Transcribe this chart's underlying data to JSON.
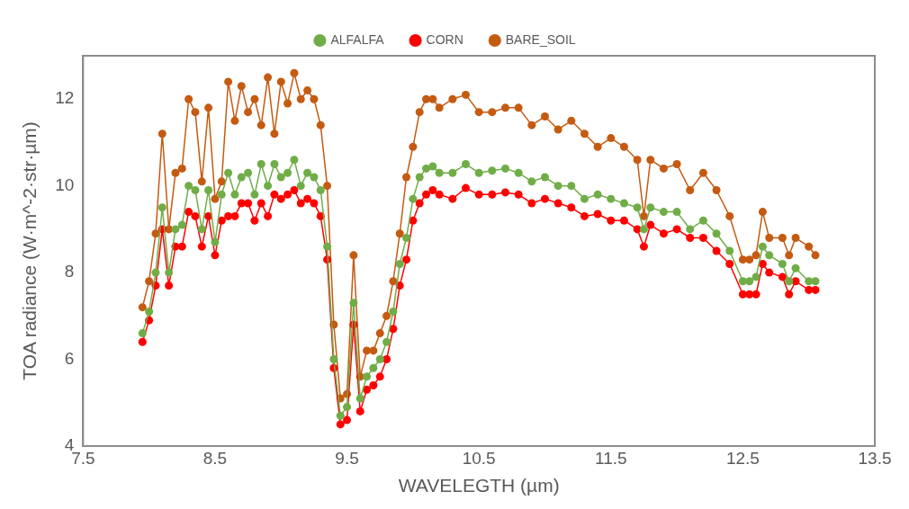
{
  "chart_data": {
    "type": "line",
    "xlabel": "WAVELEGTH (µm)",
    "ylabel": "TOA radiance (W·m^-2·str·µm)",
    "x": [
      7.95,
      8.0,
      8.05,
      8.1,
      8.15,
      8.2,
      8.25,
      8.3,
      8.35,
      8.4,
      8.45,
      8.5,
      8.55,
      8.6,
      8.65,
      8.7,
      8.75,
      8.8,
      8.85,
      8.9,
      8.95,
      9.0,
      9.05,
      9.1,
      9.15,
      9.2,
      9.25,
      9.3,
      9.35,
      9.4,
      9.45,
      9.5,
      9.55,
      9.6,
      9.65,
      9.7,
      9.75,
      9.8,
      9.85,
      9.9,
      9.95,
      10.0,
      10.05,
      10.1,
      10.15,
      10.2,
      10.3,
      10.4,
      10.5,
      10.6,
      10.7,
      10.8,
      10.9,
      11.0,
      11.1,
      11.2,
      11.3,
      11.4,
      11.5,
      11.6,
      11.7,
      11.75,
      11.8,
      11.9,
      12.0,
      12.1,
      12.2,
      12.3,
      12.4,
      12.5,
      12.55,
      12.6,
      12.65,
      12.7,
      12.8,
      12.85,
      12.9,
      13.0,
      13.05
    ],
    "series": [
      {
        "name": "ALFALFA",
        "color": "#70ad47",
        "values": [
          6.6,
          7.1,
          8.0,
          9.5,
          8.0,
          9.0,
          9.1,
          10.0,
          9.9,
          9.0,
          9.9,
          8.7,
          9.8,
          10.3,
          9.8,
          10.2,
          10.3,
          9.8,
          10.5,
          10.0,
          10.5,
          10.2,
          10.3,
          10.6,
          10.0,
          10.3,
          10.2,
          9.9,
          8.6,
          6.0,
          4.7,
          4.9,
          7.3,
          5.1,
          5.6,
          5.8,
          6.0,
          6.4,
          7.1,
          8.2,
          8.8,
          9.7,
          10.2,
          10.4,
          10.45,
          10.3,
          10.3,
          10.5,
          10.3,
          10.35,
          10.4,
          10.3,
          10.1,
          10.2,
          10.0,
          10.0,
          9.7,
          9.8,
          9.7,
          9.6,
          9.5,
          9.0,
          9.5,
          9.4,
          9.4,
          9.0,
          9.2,
          8.9,
          8.5,
          7.8,
          7.8,
          7.9,
          8.6,
          8.4,
          8.2,
          7.8,
          8.1,
          7.8,
          7.8
        ]
      },
      {
        "name": "CORN",
        "color": "#ff0000",
        "values": [
          6.4,
          6.9,
          7.7,
          9.0,
          7.7,
          8.6,
          8.6,
          9.4,
          9.3,
          8.6,
          9.3,
          8.4,
          9.2,
          9.3,
          9.3,
          9.6,
          9.6,
          9.2,
          9.6,
          9.3,
          9.8,
          9.7,
          9.8,
          9.9,
          9.6,
          9.7,
          9.6,
          9.3,
          8.3,
          5.8,
          4.5,
          4.6,
          6.8,
          4.8,
          5.3,
          5.4,
          5.6,
          6.0,
          6.7,
          7.7,
          8.3,
          9.2,
          9.6,
          9.8,
          9.9,
          9.8,
          9.7,
          9.95,
          9.8,
          9.8,
          9.85,
          9.8,
          9.6,
          9.7,
          9.6,
          9.5,
          9.3,
          9.35,
          9.2,
          9.2,
          9.0,
          8.6,
          9.1,
          8.9,
          9.0,
          8.8,
          8.8,
          8.5,
          8.2,
          7.5,
          7.5,
          7.5,
          8.2,
          8.0,
          7.9,
          7.5,
          7.8,
          7.6,
          7.6
        ]
      },
      {
        "name": "BARE_SOIL",
        "color": "#c55a11",
        "values": [
          7.2,
          7.8,
          8.9,
          11.2,
          9.0,
          10.3,
          10.4,
          12.0,
          11.7,
          10.1,
          11.8,
          9.7,
          10.1,
          12.4,
          11.5,
          12.3,
          11.7,
          12.0,
          11.4,
          12.5,
          11.2,
          12.4,
          11.9,
          12.6,
          12.0,
          12.2,
          12.0,
          11.4,
          10.0,
          6.8,
          5.1,
          5.2,
          8.4,
          5.6,
          6.2,
          6.2,
          6.6,
          7.0,
          7.8,
          8.9,
          10.2,
          10.9,
          11.7,
          12.0,
          12.0,
          11.8,
          12.0,
          12.1,
          11.7,
          11.7,
          11.8,
          11.8,
          11.4,
          11.6,
          11.3,
          11.5,
          11.2,
          10.9,
          11.1,
          10.9,
          10.6,
          9.3,
          10.6,
          10.4,
          10.5,
          9.9,
          10.3,
          9.9,
          9.3,
          8.3,
          8.3,
          8.4,
          9.4,
          8.8,
          8.8,
          8.4,
          8.8,
          8.6,
          8.4
        ]
      }
    ],
    "xlim": [
      7.5,
      13.5
    ],
    "xticks": [
      7.5,
      8.5,
      9.5,
      10.5,
      11.5,
      12.5,
      13.5
    ],
    "ylim": [
      4,
      13
    ],
    "yticks": [
      4,
      6,
      8,
      10,
      12
    ],
    "grid": false,
    "legend": "top",
    "marker": "circle",
    "line_style": "solid"
  }
}
